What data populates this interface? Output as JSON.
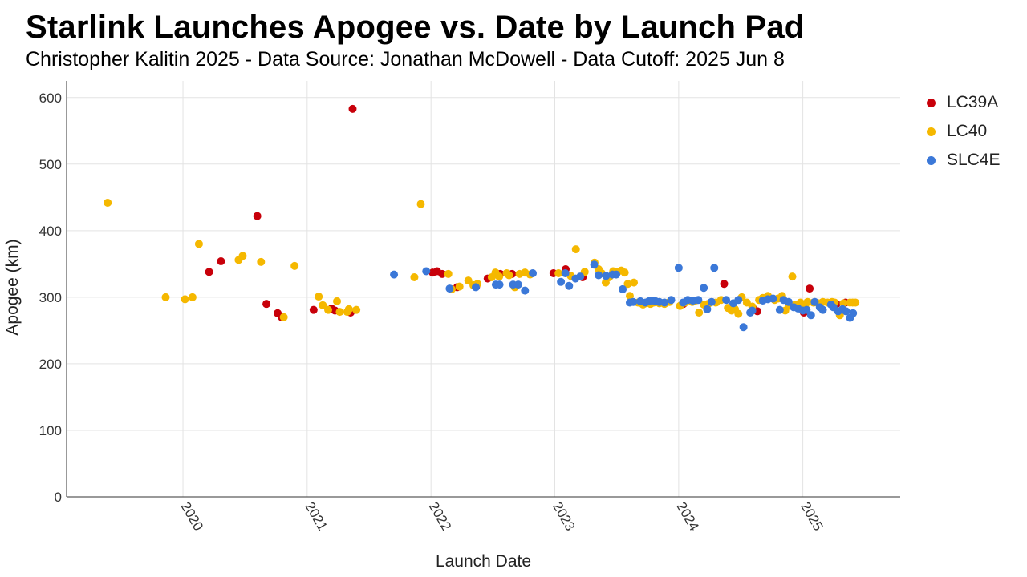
{
  "title": "Starlink Launches Apogee vs. Date by Launch Pad",
  "subtitle": "Christopher Kalitin 2025 - Data Source: Jonathan McDowell - Data Cutoff: 2025 Jun 8",
  "chart_data": {
    "type": "scatter",
    "xlabel": "Launch Date",
    "ylabel": "Apogee (km)",
    "xlim": [
      "2019-01-23",
      "2025-10-15"
    ],
    "ylim": [
      0,
      625
    ],
    "x_ticks": [
      "2020",
      "2021",
      "2022",
      "2023",
      "2024",
      "2025"
    ],
    "y_ticks": [
      0,
      100,
      200,
      300,
      400,
      500,
      600
    ],
    "grid": true,
    "legend_position": "right",
    "series": [
      {
        "name": "LC39A",
        "color": "#c8000a",
        "points": [
          [
            "2020-03-18",
            338
          ],
          [
            "2020-04-22",
            354
          ],
          [
            "2020-08-07",
            422
          ],
          [
            "2020-09-03",
            290
          ],
          [
            "2020-10-06",
            276
          ],
          [
            "2020-10-18",
            270
          ],
          [
            "2021-01-20",
            281
          ],
          [
            "2021-03-14",
            283
          ],
          [
            "2021-03-24",
            280
          ],
          [
            "2021-05-09",
            277
          ],
          [
            "2021-05-15",
            583
          ],
          [
            "2022-01-06",
            337
          ],
          [
            "2022-01-19",
            339
          ],
          [
            "2022-02-03",
            335
          ],
          [
            "2022-03-19",
            315
          ],
          [
            "2022-05-14",
            316
          ],
          [
            "2022-06-17",
            328
          ],
          [
            "2022-07-24",
            335
          ],
          [
            "2022-08-28",
            335
          ],
          [
            "2022-12-28",
            336
          ],
          [
            "2023-02-02",
            342
          ],
          [
            "2023-03-24",
            330
          ],
          [
            "2024-01-15",
            290
          ],
          [
            "2024-05-14",
            320
          ],
          [
            "2024-08-10",
            282
          ],
          [
            "2024-08-20",
            279
          ],
          [
            "2025-01-04",
            277
          ],
          [
            "2025-01-21",
            313
          ],
          [
            "2025-04-10",
            290
          ],
          [
            "2025-05-07",
            292
          ]
        ]
      },
      {
        "name": "LC40",
        "color": "#f5b800",
        "points": [
          [
            "2019-05-24",
            442
          ],
          [
            "2019-11-11",
            300
          ],
          [
            "2020-01-07",
            297
          ],
          [
            "2020-01-29",
            300
          ],
          [
            "2020-02-17",
            380
          ],
          [
            "2020-06-13",
            356
          ],
          [
            "2020-06-25",
            362
          ],
          [
            "2020-08-18",
            353
          ],
          [
            "2020-10-24",
            270
          ],
          [
            "2020-11-25",
            347
          ],
          [
            "2021-02-04",
            301
          ],
          [
            "2021-02-16",
            288
          ],
          [
            "2021-03-04",
            281
          ],
          [
            "2021-04-07",
            278
          ],
          [
            "2021-03-30",
            294
          ],
          [
            "2021-04-29",
            278
          ],
          [
            "2021-05-04",
            282
          ],
          [
            "2021-05-26",
            281
          ],
          [
            "2021-11-13",
            330
          ],
          [
            "2021-12-02",
            440
          ],
          [
            "2022-02-21",
            335
          ],
          [
            "2022-03-03",
            312
          ],
          [
            "2022-03-26",
            316
          ],
          [
            "2022-04-21",
            325
          ],
          [
            "2022-05-06",
            318
          ],
          [
            "2022-05-18",
            320
          ],
          [
            "2022-06-29",
            330
          ],
          [
            "2022-07-10",
            337
          ],
          [
            "2022-07-21",
            331
          ],
          [
            "2022-08-12",
            336
          ],
          [
            "2022-08-19",
            333
          ],
          [
            "2022-09-05",
            315
          ],
          [
            "2022-09-19",
            335
          ],
          [
            "2022-10-05",
            337
          ],
          [
            "2022-10-20",
            334
          ],
          [
            "2023-01-12",
            336
          ],
          [
            "2023-02-17",
            332
          ],
          [
            "2023-03-04",
            372
          ],
          [
            "2023-03-30",
            338
          ],
          [
            "2023-04-28",
            352
          ],
          [
            "2023-05-10",
            342
          ],
          [
            "2023-05-19",
            336
          ],
          [
            "2023-05-31",
            322
          ],
          [
            "2023-06-10",
            330
          ],
          [
            "2023-06-22",
            339
          ],
          [
            "2023-07-05",
            338
          ],
          [
            "2023-07-16",
            340
          ],
          [
            "2023-07-26",
            337
          ],
          [
            "2023-08-04",
            320
          ],
          [
            "2023-08-10",
            302
          ],
          [
            "2023-08-22",
            322
          ],
          [
            "2023-09-03",
            292
          ],
          [
            "2023-09-18",
            289
          ],
          [
            "2023-09-26",
            291
          ],
          [
            "2023-10-10",
            290
          ],
          [
            "2023-10-20",
            292
          ],
          [
            "2023-11-05",
            291
          ],
          [
            "2023-11-20",
            290
          ],
          [
            "2023-12-05",
            293
          ],
          [
            "2024-01-05",
            287
          ],
          [
            "2024-01-20",
            292
          ],
          [
            "2024-02-10",
            293
          ],
          [
            "2024-02-20",
            295
          ],
          [
            "2024-03-01",
            277
          ],
          [
            "2024-03-15",
            289
          ],
          [
            "2024-03-28",
            290
          ],
          [
            "2024-04-20",
            292
          ],
          [
            "2024-05-05",
            296
          ],
          [
            "2024-05-25",
            284
          ],
          [
            "2024-06-05",
            280
          ],
          [
            "2024-06-15",
            282
          ],
          [
            "2024-06-25",
            275
          ],
          [
            "2024-07-05",
            300
          ],
          [
            "2024-07-20",
            292
          ],
          [
            "2024-08-05",
            286
          ],
          [
            "2024-08-25",
            296
          ],
          [
            "2024-09-05",
            299
          ],
          [
            "2024-09-20",
            302
          ],
          [
            "2024-10-10",
            296
          ],
          [
            "2024-10-20",
            298
          ],
          [
            "2024-11-01",
            302
          ],
          [
            "2024-11-10",
            280
          ],
          [
            "2024-11-20",
            287
          ],
          [
            "2024-12-01",
            331
          ],
          [
            "2024-12-10",
            289
          ],
          [
            "2024-12-25",
            292
          ],
          [
            "2025-01-08",
            286
          ],
          [
            "2025-01-15",
            293
          ],
          [
            "2025-02-01",
            292
          ],
          [
            "2025-02-15",
            291
          ],
          [
            "2025-03-01",
            293
          ],
          [
            "2025-03-15",
            292
          ],
          [
            "2025-03-28",
            293
          ],
          [
            "2025-04-05",
            292
          ],
          [
            "2025-04-20",
            273
          ],
          [
            "2025-05-01",
            291
          ],
          [
            "2025-05-20",
            292
          ],
          [
            "2025-05-28",
            292
          ],
          [
            "2025-06-05",
            292
          ]
        ]
      },
      {
        "name": "SLC4E",
        "color": "#3b78d8",
        "points": [
          [
            "2021-09-14",
            334
          ],
          [
            "2021-12-18",
            339
          ],
          [
            "2022-02-25",
            313
          ],
          [
            "2022-05-13",
            315
          ],
          [
            "2022-07-11",
            319
          ],
          [
            "2022-07-22",
            319
          ],
          [
            "2022-08-31",
            319
          ],
          [
            "2022-09-15",
            319
          ],
          [
            "2022-10-05",
            310
          ],
          [
            "2022-10-28",
            336
          ],
          [
            "2023-01-19",
            323
          ],
          [
            "2023-02-01",
            336
          ],
          [
            "2023-02-12",
            317
          ],
          [
            "2023-03-03",
            328
          ],
          [
            "2023-03-17",
            331
          ],
          [
            "2023-04-27",
            349
          ],
          [
            "2023-05-10",
            333
          ],
          [
            "2023-06-01",
            332
          ],
          [
            "2023-06-20",
            334
          ],
          [
            "2023-07-01",
            334
          ],
          [
            "2023-07-20",
            312
          ],
          [
            "2023-08-10",
            292
          ],
          [
            "2023-08-20",
            293
          ],
          [
            "2023-09-10",
            294
          ],
          [
            "2023-09-25",
            292
          ],
          [
            "2023-10-05",
            294
          ],
          [
            "2023-10-15",
            295
          ],
          [
            "2023-10-25",
            294
          ],
          [
            "2023-11-05",
            293
          ],
          [
            "2023-11-20",
            292
          ],
          [
            "2023-12-10",
            296
          ],
          [
            "2024-01-01",
            344
          ],
          [
            "2024-01-14",
            292
          ],
          [
            "2024-01-28",
            296
          ],
          [
            "2024-02-12",
            295
          ],
          [
            "2024-02-28",
            296
          ],
          [
            "2024-03-15",
            314
          ],
          [
            "2024-03-25",
            282
          ],
          [
            "2024-04-07",
            293
          ],
          [
            "2024-04-15",
            344
          ],
          [
            "2024-05-20",
            296
          ],
          [
            "2024-06-10",
            291
          ],
          [
            "2024-06-25",
            296
          ],
          [
            "2024-07-10",
            255
          ],
          [
            "2024-07-30",
            277
          ],
          [
            "2024-08-05",
            280
          ],
          [
            "2024-09-05",
            295
          ],
          [
            "2024-09-20",
            297
          ],
          [
            "2024-10-05",
            298
          ],
          [
            "2024-10-25",
            281
          ],
          [
            "2024-11-05",
            296
          ],
          [
            "2024-11-20",
            293
          ],
          [
            "2024-12-05",
            285
          ],
          [
            "2024-12-18",
            283
          ],
          [
            "2025-01-01",
            280
          ],
          [
            "2025-01-12",
            281
          ],
          [
            "2025-01-25",
            273
          ],
          [
            "2025-02-05",
            293
          ],
          [
            "2025-02-20",
            285
          ],
          [
            "2025-03-01",
            281
          ],
          [
            "2025-03-25",
            289
          ],
          [
            "2025-04-01",
            285
          ],
          [
            "2025-04-15",
            279
          ],
          [
            "2025-04-28",
            282
          ],
          [
            "2025-05-08",
            279
          ],
          [
            "2025-05-20",
            269
          ],
          [
            "2025-05-29",
            276
          ]
        ]
      }
    ]
  }
}
